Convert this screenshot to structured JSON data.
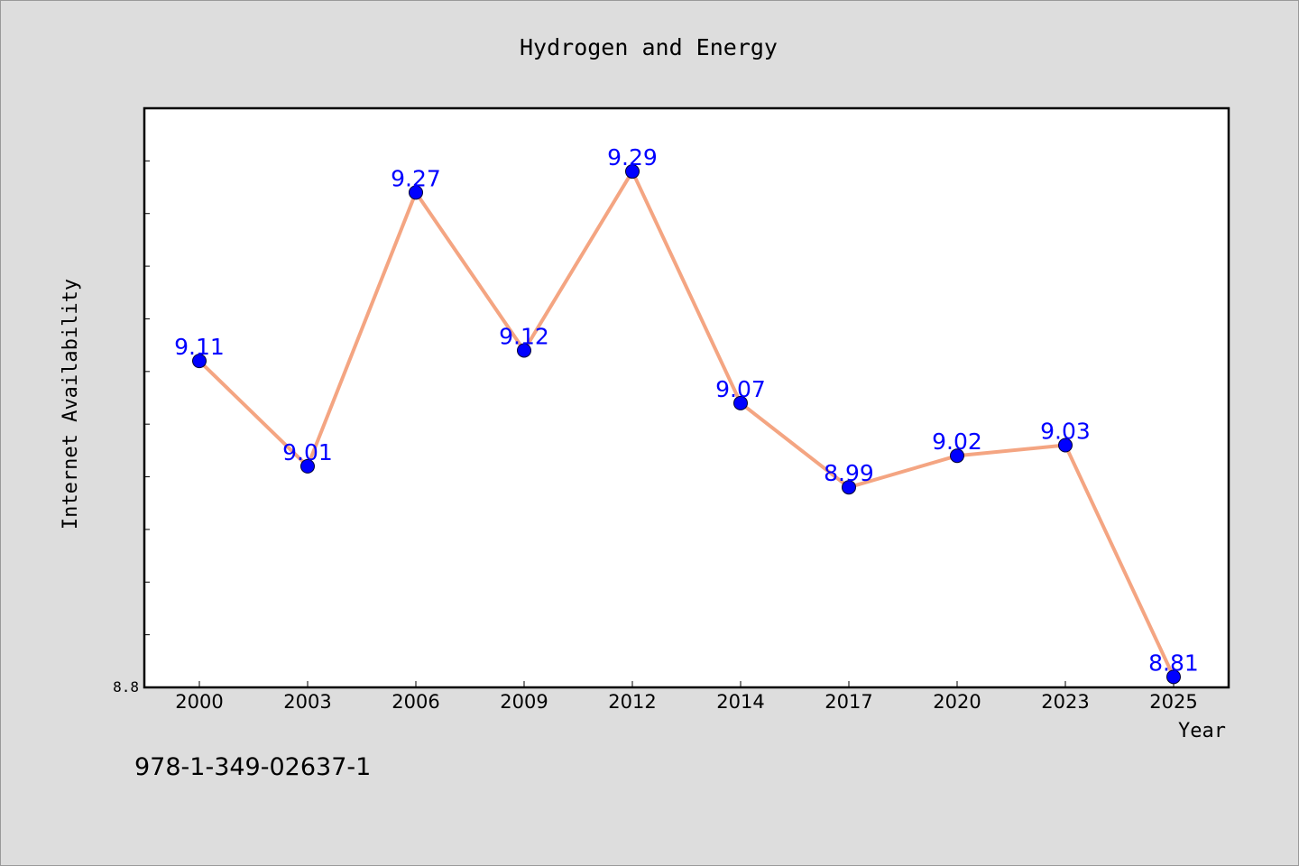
{
  "chart_data": {
    "type": "line",
    "title": "Hydrogen and Energy",
    "xlabel": "Year",
    "ylabel": "Internet Availability",
    "categories": [
      "2000",
      "2003",
      "2006",
      "2009",
      "2012",
      "2014",
      "2017",
      "2020",
      "2023",
      "2025"
    ],
    "series": [
      {
        "values": [
          9.11,
          9.01,
          9.27,
          9.12,
          9.29,
          9.07,
          8.99,
          9.02,
          9.03,
          8.81
        ],
        "data_labels": [
          "9.11",
          "9.01",
          "9.27",
          "9.12",
          "9.29",
          "9.07",
          "8.99",
          "9.02",
          "9.03",
          "8.81"
        ]
      }
    ],
    "ylim": [
      8.8,
      9.35
    ],
    "y_tick_labels": [
      "8.8"
    ],
    "grid": false,
    "line_color": "#f4a582",
    "marker_color": "#0000ff",
    "label_color": "#0000ff"
  },
  "footnote": "978-1-349-02637-1"
}
